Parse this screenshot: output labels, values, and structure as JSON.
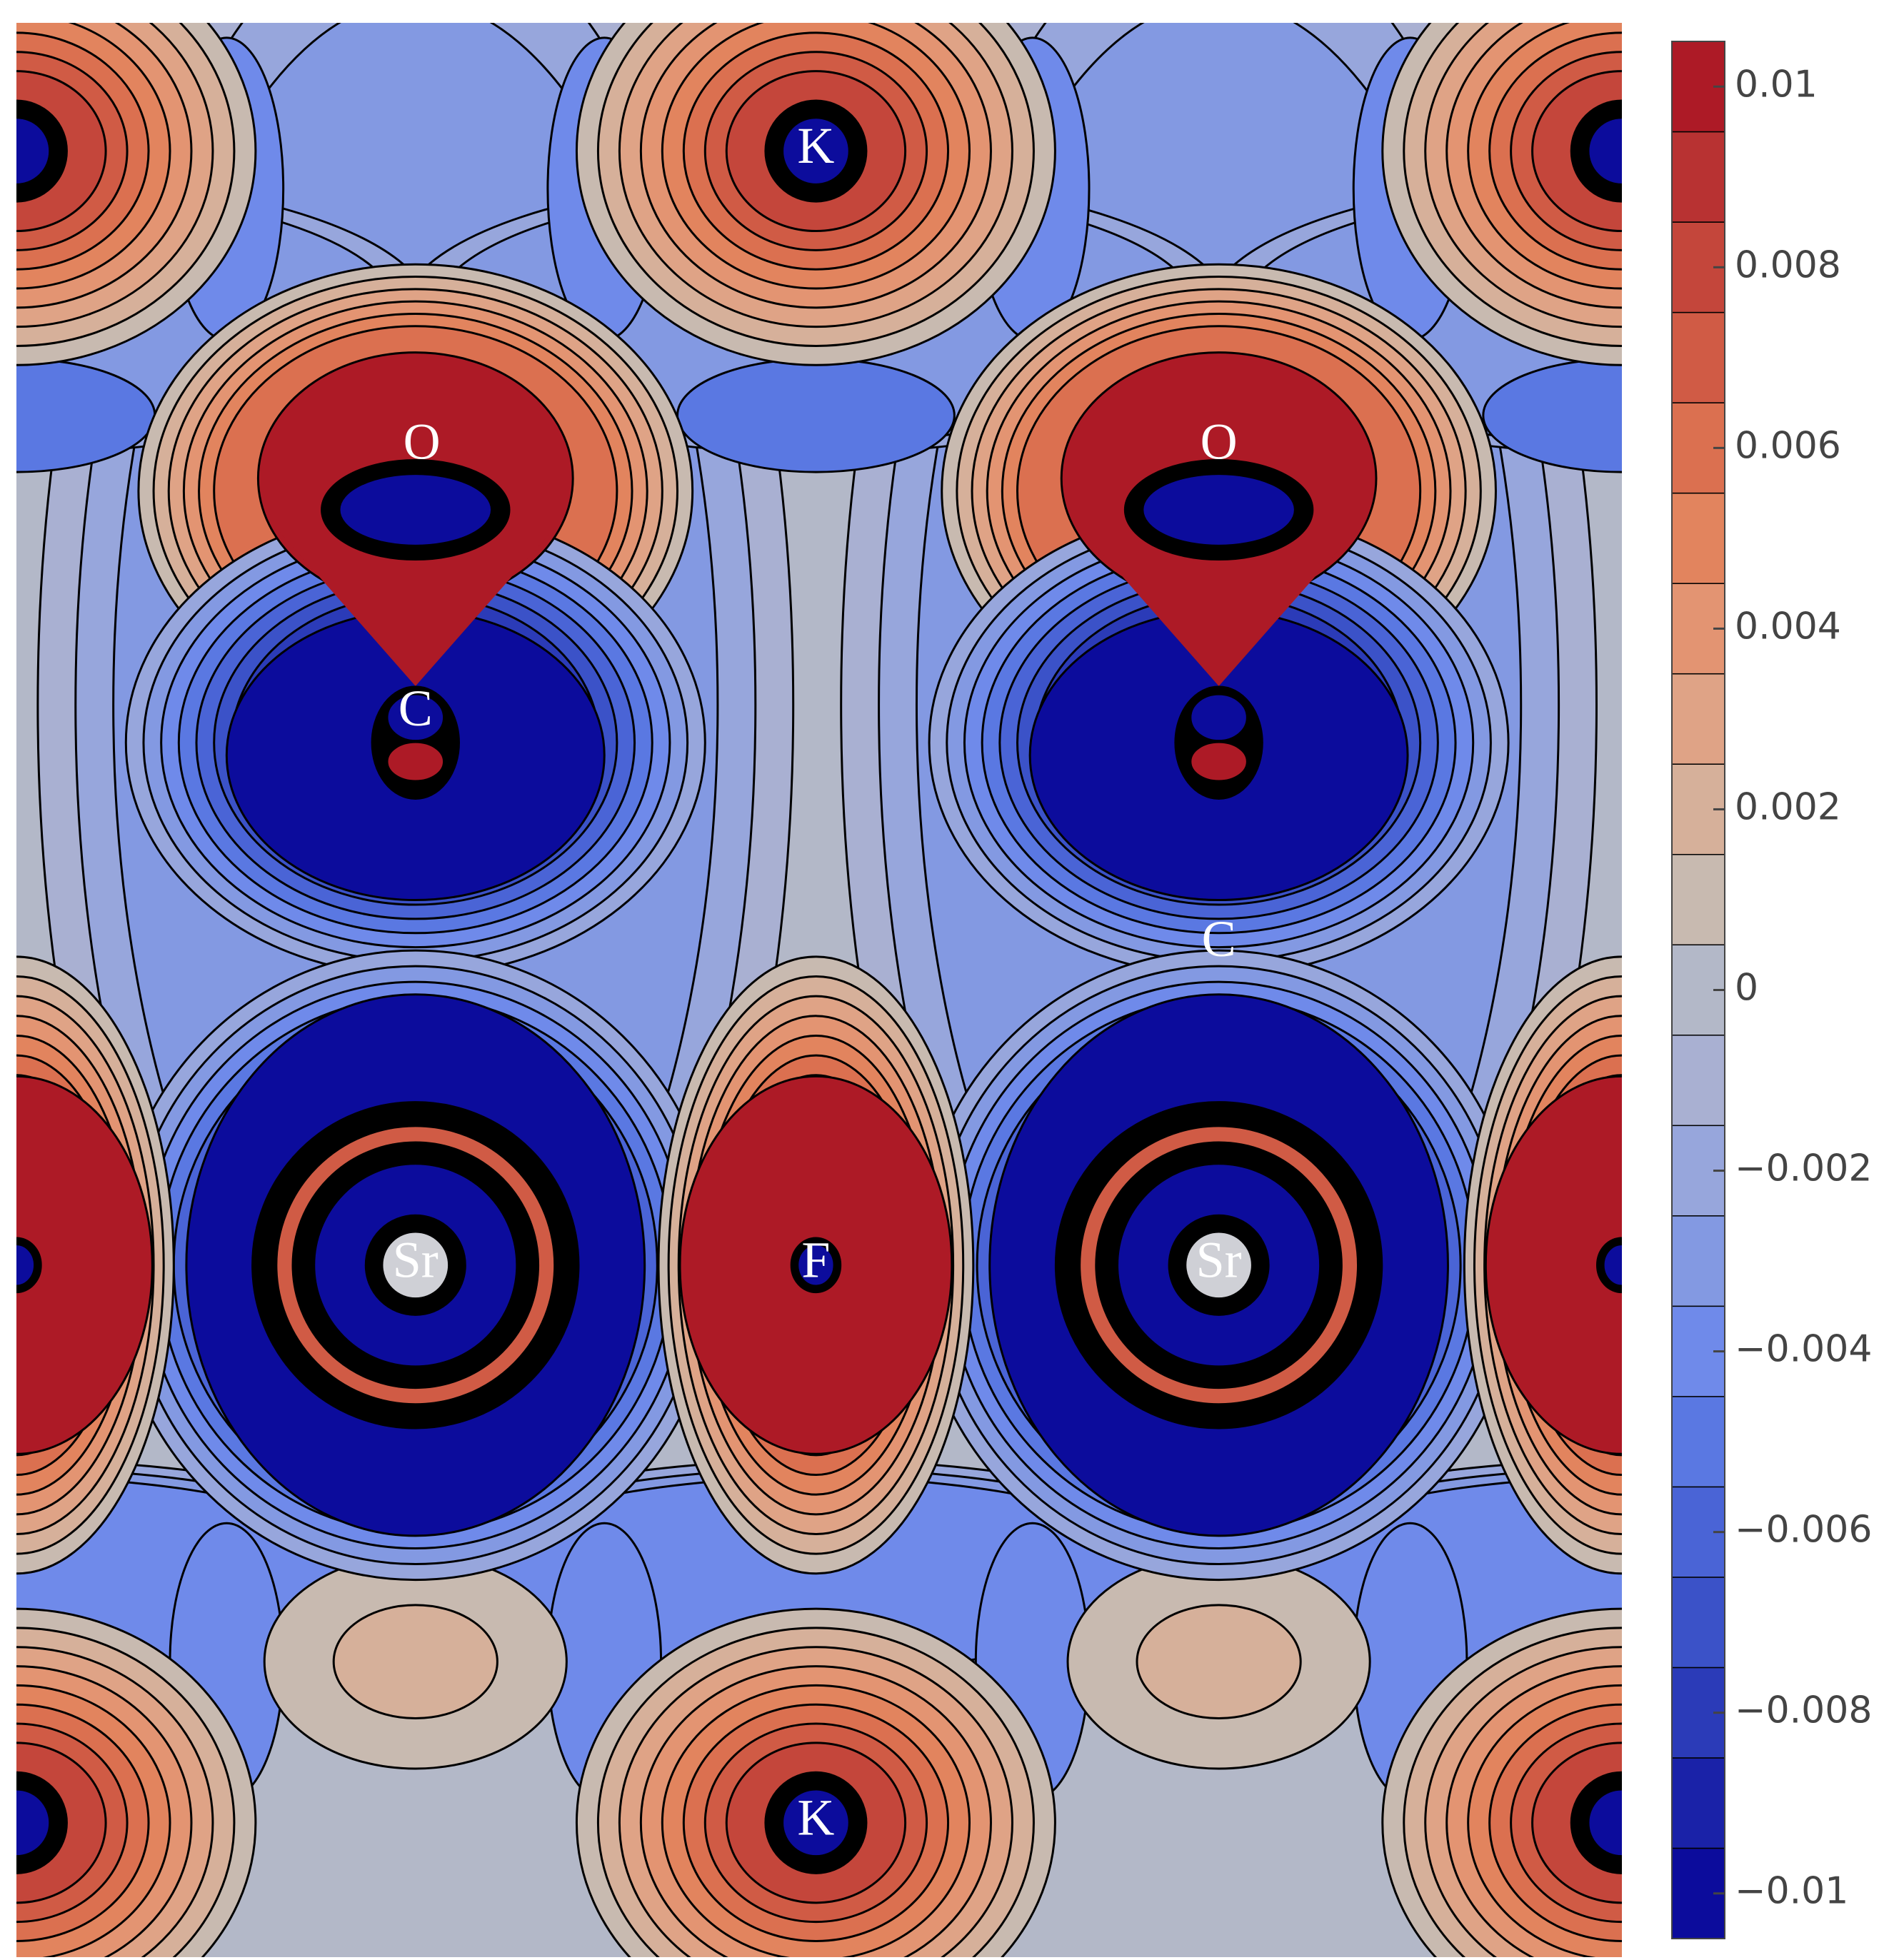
{
  "chart_data": {
    "type": "contour",
    "zlim": [
      -0.0105,
      0.0105
    ],
    "zticks": [
      {
        "value": -0.01,
        "label": "−0.01"
      },
      {
        "value": -0.008,
        "label": "−0.008"
      },
      {
        "value": -0.006,
        "label": "−0.006"
      },
      {
        "value": -0.004,
        "label": "−0.004"
      },
      {
        "value": -0.002,
        "label": "−0.002"
      },
      0,
      0.002,
      0.004,
      0.006,
      0.008,
      0.01
    ],
    "colors": [
      "#0c0c9c",
      "#1a22a8",
      "#2b3bb8",
      "#3b52c8",
      "#4a64d6",
      "#5a78e2",
      "#6f8aea",
      "#8399e2",
      "#97a6dc",
      "#a9b0d2",
      "#b3b8c8",
      "#c8bab0",
      "#d6b09a",
      "#dfa386",
      "#e39472",
      "#e2845e",
      "#db7050",
      "#d05b45",
      "#c4463b",
      "#b83232",
      "#ad1a26"
    ],
    "annotations": [
      "K",
      "O",
      "O",
      "C",
      "C",
      "Sr",
      "F",
      "Sr",
      "K"
    ]
  }
}
